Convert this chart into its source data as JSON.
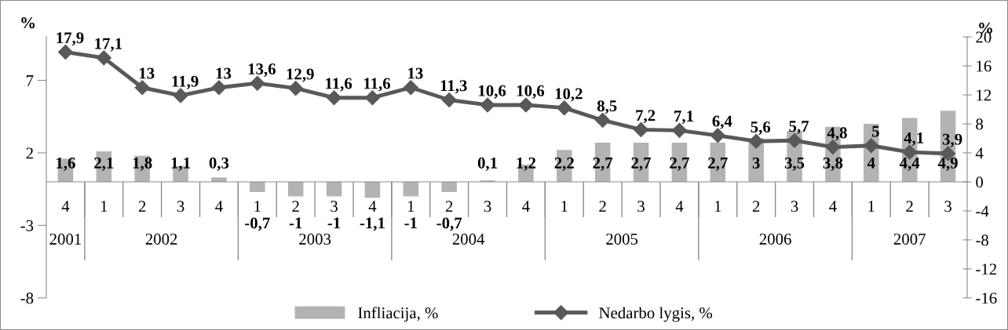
{
  "chart_data": {
    "type": "bar",
    "ylabel": "%",
    "y2label": "%",
    "categories": [
      "4",
      "1",
      "2",
      "3",
      "4",
      "1",
      "2",
      "3",
      "4",
      "1",
      "2",
      "3",
      "4",
      "1",
      "2",
      "3",
      "4",
      "1",
      "2",
      "3",
      "4",
      "1",
      "2",
      "3"
    ],
    "annotations": [
      "2001",
      "2002",
      "2003",
      "2004",
      "2005",
      "2006",
      "2007"
    ],
    "series": [
      {
        "name": "Infliacija, %",
        "color": "#b3b3b3",
        "values": [
          1.6,
          2.1,
          1.8,
          1.1,
          0.3,
          -0.7,
          -1,
          -1,
          -1.1,
          -1,
          -0.7,
          0.1,
          1.2,
          2.2,
          2.7,
          2.7,
          2.7,
          2.7,
          3,
          3.5,
          3.8,
          4,
          4.4,
          4.9
        ],
        "value_labels": [
          "1,6",
          "2,1",
          "1,8",
          "1,1",
          "0,3",
          "-0,7",
          "-1",
          "-1",
          "-1,1",
          "-1",
          "-0,7",
          "0,1",
          "1,2",
          "2,2",
          "2,7",
          "2,7",
          "2,7",
          "2,7",
          "3",
          "3,5",
          "3,8",
          "4",
          "4,4",
          "4,9"
        ]
      },
      {
        "name": "Nedarbo lygis, %",
        "type": "line",
        "axis": "y2",
        "color": "#595959",
        "marker": "diamond",
        "values": [
          17.9,
          17.1,
          13,
          11.9,
          13,
          13.6,
          12.9,
          11.6,
          11.6,
          13,
          11.3,
          10.6,
          10.6,
          10.2,
          8.5,
          7.2,
          7.1,
          6.4,
          5.6,
          5.7,
          4.8,
          5,
          4.1,
          3.9
        ],
        "value_labels": [
          "17,9",
          "17,1",
          "13",
          "11,9",
          "13",
          "13,6",
          "12,9",
          "11,6",
          "11,6",
          "13",
          "11,3",
          "10,6",
          "10,6",
          "10,2",
          "8,5",
          "7,2",
          "7,1",
          "6,4",
          "5,6",
          "5,7",
          "4,8",
          "5",
          "4,1",
          "3,9"
        ]
      }
    ],
    "ylim": [
      -8,
      10
    ],
    "yticks": [
      -8,
      -3,
      2,
      7
    ],
    "y2lim": [
      -16,
      20
    ],
    "y2ticks": [
      -16,
      -12,
      -8,
      -4,
      0,
      4,
      8,
      12,
      16,
      20
    ],
    "legend": "bottom"
  }
}
